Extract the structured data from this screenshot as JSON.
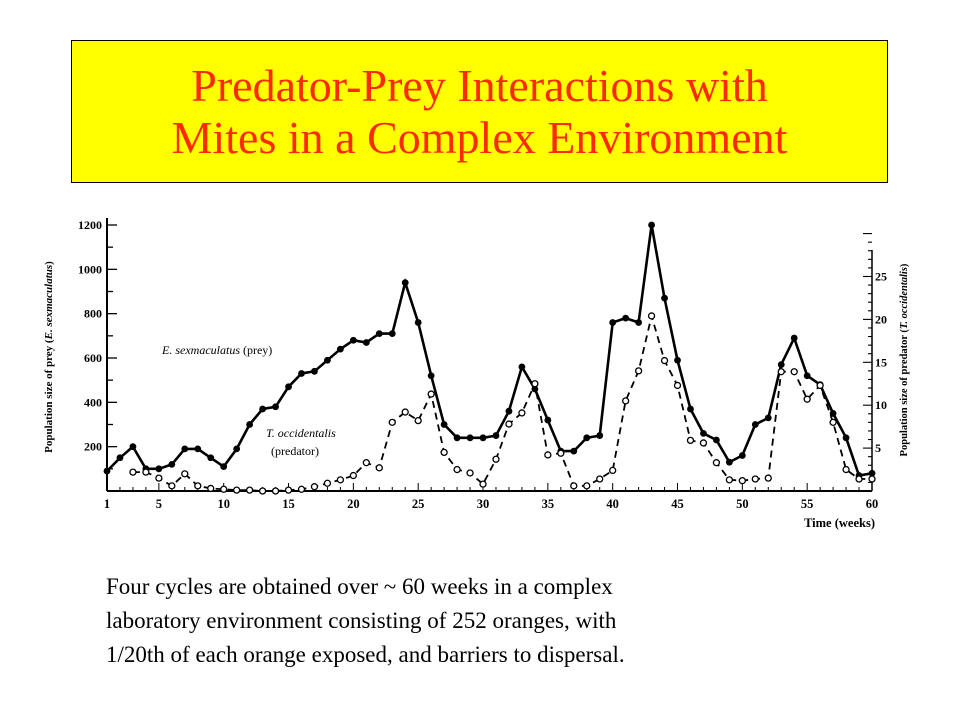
{
  "title": {
    "line1": "Predator-Prey Interactions with",
    "line2": "Mites in a Complex Environment",
    "text_color": "#ff2a00",
    "bg_color": "#ffff00"
  },
  "caption": {
    "line1": "Four cycles are obtained over ~ 60 weeks in a complex",
    "line2": "laboratory environment consisting of 252 oranges, with",
    "line3": "1/20th of each orange exposed, and barriers to dispersal."
  },
  "chart_data": {
    "type": "line",
    "xlabel": "Time (weeks)",
    "ylabel_left": {
      "normal_1": "Population size of prey (",
      "italic": "E. sexmaculatus",
      "normal_2": ")"
    },
    "ylabel_right": {
      "normal_1": "Population size of predator (",
      "italic": "T. occidentalis",
      "normal_2": ")"
    },
    "xlim": [
      1,
      60
    ],
    "ylim_left": [
      0,
      1200
    ],
    "ylim_right": [
      0,
      31
    ],
    "x_ticks": [
      "1",
      "5",
      "10",
      "15",
      "20",
      "25",
      "30",
      "35",
      "40",
      "45",
      "50",
      "55",
      "60"
    ],
    "y_ticks_left": [
      "200",
      "400",
      "600",
      "800",
      "1000",
      "1200"
    ],
    "y_ticks_right": [
      "5",
      "10",
      "15",
      "20",
      "25"
    ],
    "annotations": {
      "prey_italic": "E. sexmaculatus",
      "prey_normal": " (prey)",
      "predator_italic": "T. occidentalis",
      "predator_normal": "(predator)"
    },
    "series": [
      {
        "axis": "left",
        "style": "solid line, filled circles",
        "x": [
          1,
          2,
          3,
          4,
          5,
          6,
          7,
          8,
          9,
          10,
          11,
          12,
          13,
          14,
          15,
          16,
          17,
          18,
          19,
          20,
          21,
          22,
          23,
          24,
          25,
          26,
          27,
          28,
          29,
          30,
          31,
          32,
          33,
          34,
          35,
          36,
          37,
          38,
          39,
          40,
          41,
          42,
          43,
          44,
          45,
          46,
          47,
          48,
          49,
          50,
          51,
          52,
          53,
          54,
          55,
          56,
          57,
          58,
          59,
          60
        ],
        "values": [
          90,
          150,
          200,
          100,
          100,
          120,
          190,
          190,
          150,
          110,
          190,
          300,
          370,
          380,
          470,
          530,
          540,
          590,
          640,
          680,
          670,
          710,
          710,
          940,
          760,
          520,
          300,
          240,
          240,
          240,
          250,
          360,
          560,
          460,
          320,
          180,
          180,
          240,
          250,
          760,
          780,
          760,
          1200,
          870,
          590,
          370,
          260,
          230,
          130,
          160,
          300,
          330,
          570,
          690,
          520,
          480,
          350,
          240,
          70,
          80
        ]
      },
      {
        "axis": "right",
        "style": "dashed line, open circles",
        "x": [
          3,
          4,
          5,
          6,
          7,
          8,
          9,
          10,
          11,
          12,
          13,
          14,
          15,
          16,
          17,
          18,
          19,
          20,
          21,
          22,
          23,
          24,
          25,
          26,
          27,
          28,
          29,
          30,
          31,
          32,
          33,
          34,
          35,
          36,
          37,
          38,
          39,
          40,
          41,
          42,
          43,
          44,
          45,
          46,
          47,
          48,
          49,
          50,
          51,
          52,
          53,
          54,
          55,
          56,
          57,
          58,
          59,
          60
        ],
        "values": [
          2.2,
          2.2,
          1.5,
          0.6,
          2,
          0.6,
          0.3,
          0.2,
          0.1,
          0.1,
          0,
          0,
          0.1,
          0.2,
          0.5,
          0.9,
          1.3,
          1.8,
          3.3,
          2.7,
          8,
          9.2,
          8.2,
          11.3,
          4.5,
          2.5,
          2.1,
          0.8,
          3.7,
          7.8,
          9.1,
          12.5,
          4.2,
          4.4,
          0.6,
          0.6,
          1.4,
          2.4,
          10.5,
          14,
          20.4,
          15.2,
          12.3,
          5.9,
          5.6,
          3.3,
          1.3,
          1.2,
          1.4,
          1.5,
          13.9,
          13.9,
          10.7,
          12.3,
          8,
          2.5,
          1.4,
          1.4
        ]
      }
    ]
  }
}
